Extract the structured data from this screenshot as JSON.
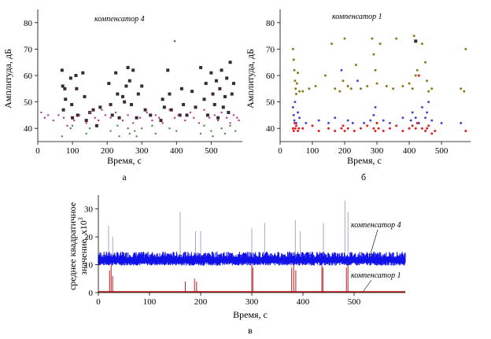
{
  "chart_data": [
    {
      "id": "a",
      "type": "scatter",
      "panel_label": "а",
      "annotation": "компенсатор 4",
      "xlabel": "Время, с",
      "ylabel": "Амплитуда, дБ",
      "xlim": [
        0,
        590
      ],
      "ylim": [
        35,
        85
      ],
      "xticks": [
        0,
        100,
        200,
        300,
        400,
        500
      ],
      "yticks": [
        40,
        50,
        60,
        70,
        80
      ],
      "colors": {
        "large": "#3a2a2a",
        "small_purple": "#b8309a",
        "small_green": "#3f8a3f"
      },
      "series": [
        {
          "marker": "large",
          "color": "#3a2a2a",
          "x": [
            70,
            72,
            74,
            78,
            80,
            95,
            98,
            100,
            110,
            112,
            115,
            130,
            135,
            140,
            150,
            160,
            170,
            180,
            205,
            210,
            215,
            225,
            230,
            235,
            245,
            250,
            255,
            260,
            265,
            270,
            275,
            285,
            290,
            300,
            310,
            325,
            355,
            360,
            365,
            375,
            380,
            385,
            410,
            415,
            420,
            430,
            445,
            455,
            470,
            480,
            485,
            490,
            500,
            505,
            510,
            515,
            520,
            525,
            530,
            535,
            540,
            545,
            550,
            555,
            560,
            565
          ],
          "y": [
            62,
            56,
            47,
            55,
            51,
            59,
            49,
            44,
            60,
            55,
            45,
            61,
            52,
            43,
            46,
            47,
            41,
            48,
            57,
            49,
            45,
            61,
            53,
            44,
            52,
            50,
            56,
            63,
            58,
            49,
            62,
            44,
            53,
            56,
            47,
            45,
            43,
            51,
            48,
            62,
            53,
            47,
            45,
            55,
            49,
            45,
            54,
            48,
            63,
            51,
            57,
            45,
            61,
            53,
            49,
            58,
            44,
            55,
            62,
            48,
            52,
            59,
            46,
            65,
            53,
            57
          ]
        },
        {
          "marker": "small",
          "color": "#b8309a",
          "x": [
            10,
            20,
            30,
            45,
            60,
            75,
            85,
            105,
            120,
            140,
            150,
            165,
            175,
            185,
            195,
            210,
            225,
            245,
            260,
            275,
            295,
            315,
            330,
            340,
            350,
            360,
            380,
            395,
            405,
            425,
            440,
            450,
            465,
            480,
            495,
            510,
            520,
            530,
            545,
            555,
            565,
            575,
            580
          ],
          "y": [
            46,
            44,
            45,
            43,
            45,
            44,
            41,
            43,
            45,
            42,
            46,
            44,
            43,
            47,
            45,
            44,
            46,
            43,
            45,
            42,
            44,
            46,
            43,
            45,
            44,
            42,
            47,
            44,
            45,
            43,
            46,
            44,
            42,
            47,
            44,
            45,
            43,
            46,
            44,
            42,
            45,
            44,
            43
          ]
        },
        {
          "marker": "small",
          "color": "#3f8a3f",
          "x": [
            70,
            95,
            100,
            140,
            150,
            210,
            230,
            235,
            260,
            265,
            280,
            285,
            300,
            330,
            340,
            380,
            400,
            470,
            480,
            500,
            505,
            530,
            540,
            555,
            570
          ],
          "y": [
            37,
            40,
            41,
            38,
            40,
            39,
            41,
            37,
            40,
            38,
            39,
            37,
            40,
            41,
            38,
            40,
            39,
            38,
            41,
            39,
            37,
            40,
            38,
            41,
            39
          ]
        }
      ],
      "outlier": {
        "x": 395,
        "y": 73
      }
    },
    {
      "id": "b",
      "type": "scatter",
      "panel_label": "б",
      "annotation": "компенсатор 1",
      "xlabel": "Время, с",
      "ylabel": "Амплитуда, дБ",
      "xlim": [
        0,
        590
      ],
      "ylim": [
        35,
        85
      ],
      "xticks": [
        0,
        100,
        200,
        300,
        400,
        500
      ],
      "yticks": [
        40,
        50,
        60,
        70,
        80
      ],
      "colors": {
        "olive": "#8a7a1a",
        "blue": "#4b4bd0",
        "red": "#e02020"
      },
      "series": [
        {
          "color": "#8a7a1a",
          "x": [
            40,
            42,
            44,
            46,
            48,
            50,
            52,
            55,
            60,
            70,
            90,
            110,
            140,
            160,
            170,
            185,
            195,
            200,
            210,
            220,
            235,
            250,
            270,
            285,
            290,
            295,
            300,
            310,
            330,
            350,
            360,
            380,
            400,
            410,
            415,
            420,
            425,
            440,
            450,
            455,
            460,
            470,
            560,
            570,
            575
          ],
          "y": [
            70,
            66,
            62,
            58,
            55,
            53,
            57,
            61,
            54,
            54,
            55,
            56,
            60,
            72,
            55,
            54,
            58,
            74,
            56,
            55,
            64,
            55,
            56,
            74,
            68,
            62,
            57,
            72,
            56,
            55,
            74,
            56,
            57,
            55,
            75,
            60,
            62,
            72,
            65,
            58,
            54,
            55,
            55,
            54,
            70
          ]
        },
        {
          "color": "#4b4bd0",
          "x": [
            40,
            42,
            44,
            46,
            50,
            55,
            60,
            80,
            120,
            150,
            170,
            190,
            210,
            225,
            240,
            260,
            280,
            290,
            295,
            300,
            320,
            340,
            380,
            405,
            410,
            420,
            430,
            440,
            450,
            455,
            460,
            470,
            500,
            560
          ],
          "y": [
            48,
            45,
            43,
            50,
            42,
            46,
            44,
            42,
            43,
            42,
            44,
            62,
            43,
            42,
            58,
            42,
            43,
            45,
            48,
            42,
            43,
            42,
            44,
            43,
            46,
            44,
            42,
            48,
            44,
            46,
            50,
            43,
            42,
            42
          ]
        },
        {
          "color": "#e02020",
          "x": [
            40,
            42,
            45,
            47,
            50,
            55,
            58,
            70,
            100,
            120,
            150,
            170,
            190,
            195,
            200,
            210,
            230,
            250,
            270,
            290,
            295,
            300,
            305,
            320,
            340,
            360,
            380,
            400,
            410,
            420,
            425,
            430,
            440,
            450,
            455,
            460,
            470,
            480,
            575
          ],
          "y": [
            40,
            39,
            42,
            40,
            41,
            39,
            40,
            40,
            41,
            39,
            40,
            39,
            40,
            41,
            39,
            40,
            39,
            40,
            41,
            40,
            39,
            42,
            40,
            39,
            40,
            41,
            39,
            40,
            41,
            40,
            42,
            60,
            40,
            39,
            40,
            41,
            38,
            39,
            39
          ]
        }
      ],
      "outlier": {
        "x": 420,
        "y": 73
      }
    },
    {
      "id": "v",
      "type": "line",
      "panel_label": "в",
      "ylabel_line1": "среднее квадратичное",
      "ylabel_line2": "значение, x10",
      "ylabel_exp": "3",
      "xlabel": "Время, с",
      "xlim": [
        0,
        600
      ],
      "ylim": [
        0,
        35
      ],
      "xticks": [
        0,
        100,
        200,
        300,
        400,
        500
      ],
      "yticks": [
        0,
        10,
        20,
        30
      ],
      "series": [
        {
          "name": "компенсатор 4",
          "color": "#1010e8",
          "baseline": 10,
          "band_top": 13.5,
          "spikes": [
            {
              "x": 20,
              "y": 24
            },
            {
              "x": 28,
              "y": 20
            },
            {
              "x": 160,
              "y": 29
            },
            {
              "x": 190,
              "y": 22
            },
            {
              "x": 200,
              "y": 22
            },
            {
              "x": 300,
              "y": 23
            },
            {
              "x": 325,
              "y": 25
            },
            {
              "x": 385,
              "y": 26
            },
            {
              "x": 395,
              "y": 22
            },
            {
              "x": 440,
              "y": 25
            },
            {
              "x": 482,
              "y": 33
            },
            {
              "x": 488,
              "y": 29
            }
          ]
        },
        {
          "name": "компенсатор 1",
          "color": "#c02020",
          "baseline": 0.3,
          "spikes": [
            {
              "x": 22,
              "y": 8
            },
            {
              "x": 25,
              "y": 10
            },
            {
              "x": 28,
              "y": 6
            },
            {
              "x": 170,
              "y": 4
            },
            {
              "x": 188,
              "y": 5
            },
            {
              "x": 192,
              "y": 4
            },
            {
              "x": 300,
              "y": 10
            },
            {
              "x": 302,
              "y": 9
            },
            {
              "x": 378,
              "y": 9
            },
            {
              "x": 382,
              "y": 10
            },
            {
              "x": 386,
              "y": 8
            },
            {
              "x": 437,
              "y": 10
            },
            {
              "x": 439,
              "y": 9
            },
            {
              "x": 485,
              "y": 9
            },
            {
              "x": 488,
              "y": 10
            }
          ]
        }
      ]
    }
  ]
}
